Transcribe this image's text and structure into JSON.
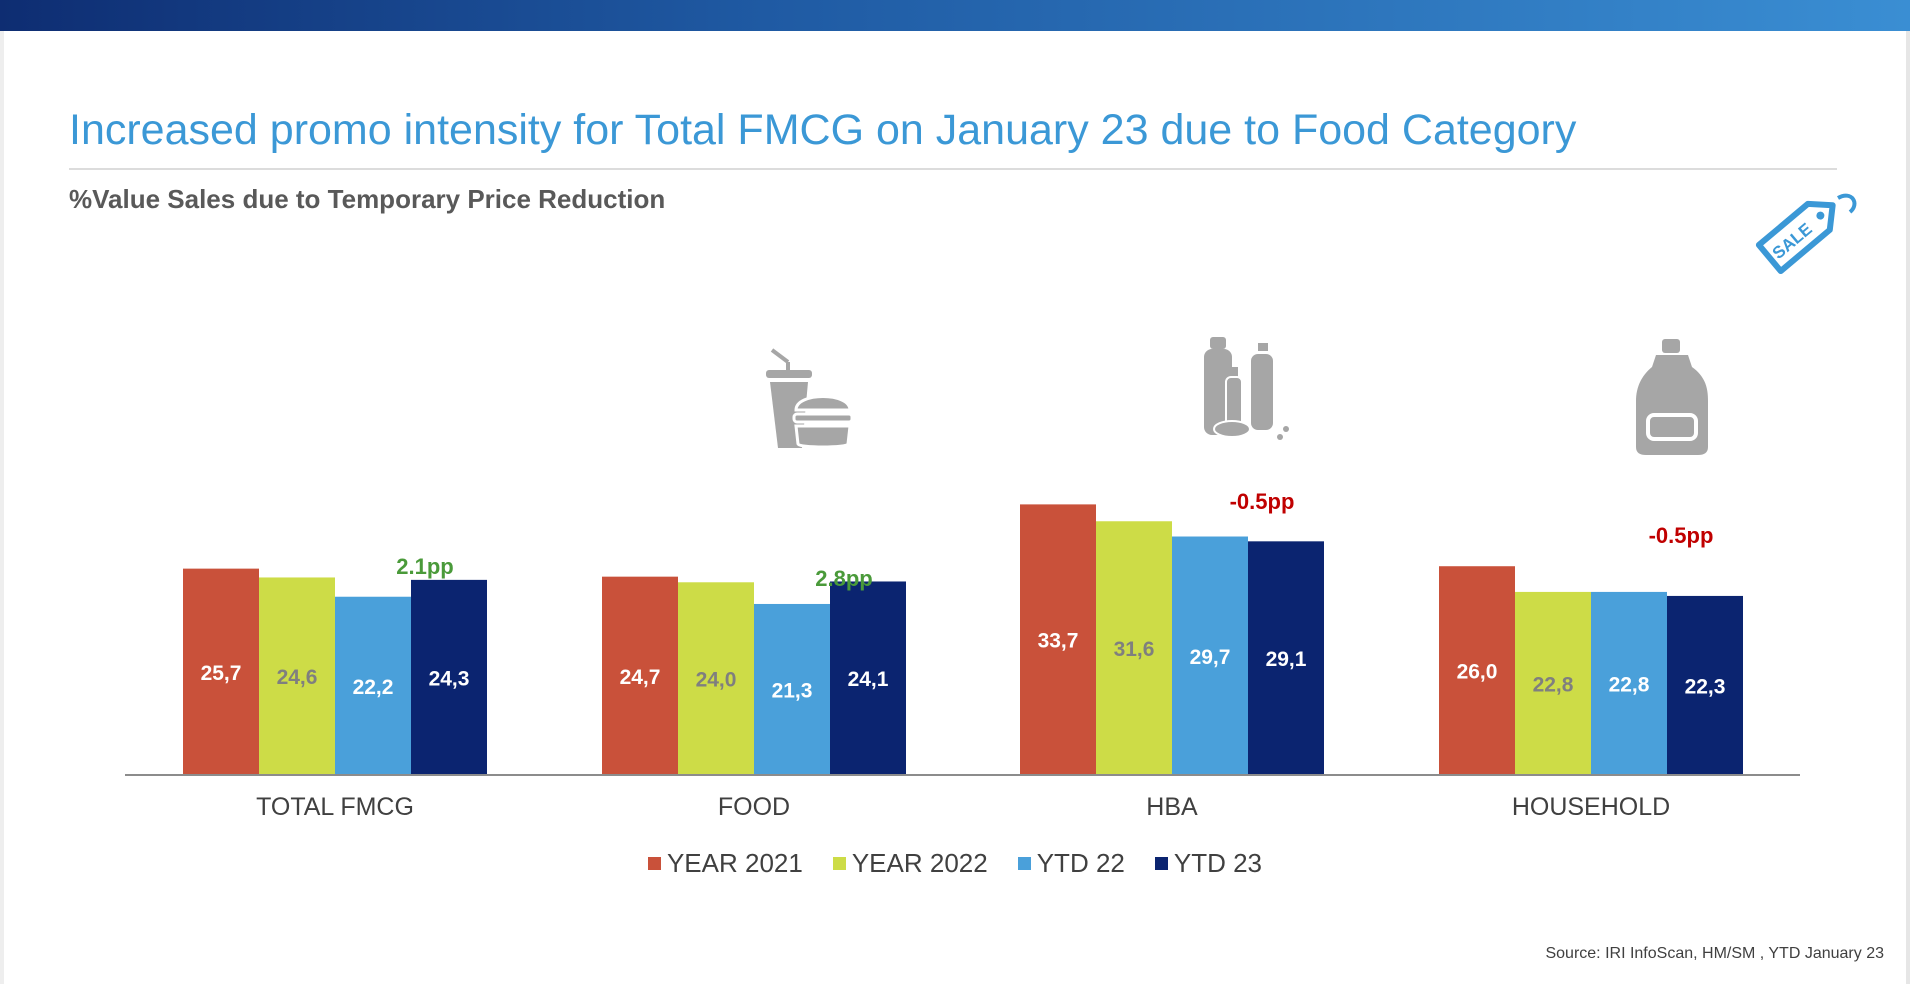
{
  "page": {
    "title": "Increased promo intensity for Total FMCG on January 23 due to Food Category",
    "subtitle": "%Value Sales due to Temporary Price Reduction",
    "source": "Source: IRI InfoScan, HM/SM , YTD January 23",
    "sale_tag_text": "SALE"
  },
  "colors": {
    "title": "#3b98d6",
    "positive_delta": "#4a9a3a",
    "negative_delta": "#c00000"
  },
  "icons": {
    "food": "burger-drink-icon",
    "hba": "cosmetics-bottles-icon",
    "household": "detergent-bottle-icon",
    "sale": "sale-tag-icon"
  },
  "chart_data": {
    "type": "bar",
    "categories": [
      "TOTAL FMCG",
      "FOOD",
      "HBA",
      "HOUSEHOLD"
    ],
    "series": [
      {
        "name": "YEAR 2021",
        "color": "#c9513a",
        "label_color": "#ffffff",
        "values": [
          25.7,
          24.7,
          33.7,
          26.0
        ],
        "labels": [
          "25,7",
          "24,7",
          "33,7",
          "26,0"
        ]
      },
      {
        "name": "YEAR 2022",
        "color": "#cddc47",
        "label_color": "#7f7f7f",
        "values": [
          24.6,
          24.0,
          31.6,
          22.8
        ],
        "labels": [
          "24,6",
          "24,0",
          "31,6",
          "22,8"
        ]
      },
      {
        "name": "YTD 22",
        "color": "#4aa0da",
        "label_color": "#ffffff",
        "values": [
          22.2,
          21.3,
          29.7,
          22.8
        ],
        "labels": [
          "22,2",
          "21,3",
          "29,7",
          "22,8"
        ]
      },
      {
        "name": "YTD 23",
        "color": "#0b2470",
        "label_color": "#ffffff",
        "values": [
          24.3,
          24.1,
          29.1,
          22.3
        ],
        "labels": [
          "24,3",
          "24,1",
          "29,1",
          "22,3"
        ]
      }
    ],
    "annotations": [
      "2.1pp",
      "2.8pp",
      "-0.5pp",
      "-0.5pp"
    ],
    "annotation_sign": [
      "positive",
      "positive",
      "negative",
      "negative"
    ],
    "ylim": [
      0,
      60
    ],
    "grid": false,
    "legend_position": "bottom-center"
  }
}
